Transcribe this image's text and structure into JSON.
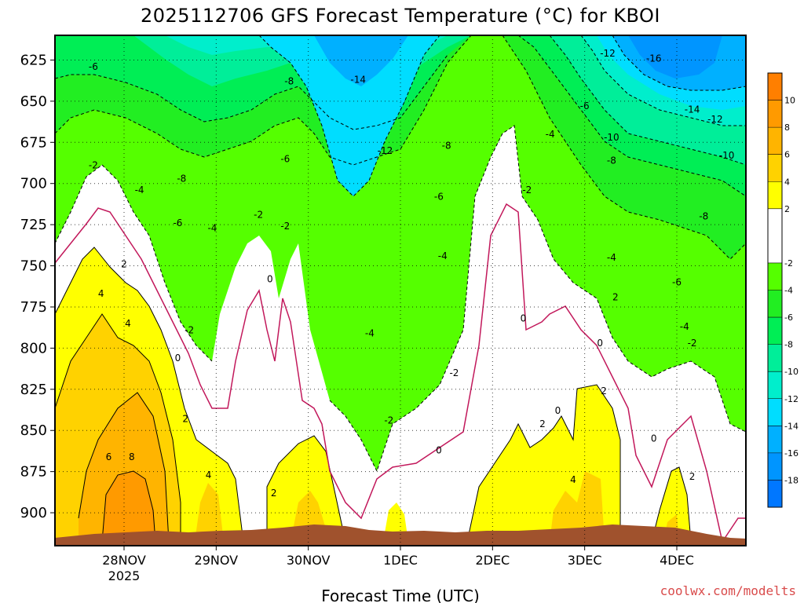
{
  "chart_data": {
    "type": "heatmap",
    "title": "2025112706 GFS Forecast Temperature (°C) for KBOI",
    "xlabel": "Forecast Time (UTC)",
    "ylabel": "",
    "y_axis": {
      "unit": "hPa",
      "ticks": [
        625,
        650,
        675,
        700,
        725,
        750,
        775,
        800,
        825,
        850,
        875,
        900
      ],
      "range": [
        610,
        920
      ],
      "grid": "dotted"
    },
    "x_axis": {
      "ticks": [
        {
          "label": "28NOV",
          "sublabel": "2025",
          "hour": 24
        },
        {
          "label": "29NOV",
          "sublabel": "",
          "hour": 48
        },
        {
          "label": "30NOV",
          "sublabel": "",
          "hour": 72
        },
        {
          "label": "1DEC",
          "sublabel": "",
          "hour": 96
        },
        {
          "label": "2DEC",
          "sublabel": "",
          "hour": 120
        },
        {
          "label": "3DEC",
          "sublabel": "",
          "hour": 144
        },
        {
          "label": "4DEC",
          "sublabel": "",
          "hour": 168
        }
      ],
      "range_hours": [
        6,
        186
      ],
      "grid": "dotted"
    },
    "colorbar": {
      "ticks": [
        10,
        8,
        6,
        4,
        2,
        -2,
        -4,
        -6,
        -8,
        -10,
        -12,
        -14,
        -16,
        -18
      ],
      "bins": [
        {
          "low": 10,
          "high": 12,
          "color": "#ff7f00"
        },
        {
          "low": 8,
          "high": 10,
          "color": "#ff9a00"
        },
        {
          "low": 6,
          "high": 8,
          "color": "#ffb400"
        },
        {
          "low": 4,
          "high": 6,
          "color": "#ffd200"
        },
        {
          "low": 2,
          "high": 4,
          "color": "#ffff00"
        },
        {
          "low": -2,
          "high": 2,
          "color": "#ffffff"
        },
        {
          "low": -4,
          "high": -2,
          "color": "#55ff00"
        },
        {
          "low": -6,
          "high": -4,
          "color": "#22ee22"
        },
        {
          "low": -8,
          "high": -6,
          "color": "#00ee55"
        },
        {
          "low": -10,
          "high": -8,
          "color": "#00ee99"
        },
        {
          "low": -12,
          "high": -10,
          "color": "#00eecc"
        },
        {
          "low": -14,
          "high": -12,
          "color": "#00ddff"
        },
        {
          "low": -16,
          "high": -14,
          "color": "#00b0ff"
        },
        {
          "low": -18,
          "high": -16,
          "color": "#0095ff"
        },
        {
          "low": -20,
          "high": -18,
          "color": "#0077ff"
        }
      ]
    },
    "contour_labels": [
      {
        "text": "-6",
        "hour": 16,
        "p": 629
      },
      {
        "text": "-2",
        "hour": 16,
        "p": 689
      },
      {
        "text": "-4",
        "hour": 28,
        "p": 704
      },
      {
        "text": "2",
        "hour": 24,
        "p": 749
      },
      {
        "text": "4",
        "hour": 18,
        "p": 767
      },
      {
        "text": "4",
        "hour": 25,
        "p": 785
      },
      {
        "text": "0",
        "hour": 38,
        "p": 806
      },
      {
        "text": "2",
        "hour": 40,
        "p": 843
      },
      {
        "text": "6",
        "hour": 20,
        "p": 866
      },
      {
        "text": "8",
        "hour": 26,
        "p": 866
      },
      {
        "text": "-8",
        "hour": 39,
        "p": 697
      },
      {
        "text": "-6",
        "hour": 38,
        "p": 724
      },
      {
        "text": "-4",
        "hour": 47,
        "p": 727
      },
      {
        "text": "-2",
        "hour": 41,
        "p": 789
      },
      {
        "text": "4",
        "hour": 46,
        "p": 877
      },
      {
        "text": "-8",
        "hour": 67,
        "p": 638
      },
      {
        "text": "-6",
        "hour": 66,
        "p": 685
      },
      {
        "text": "-2",
        "hour": 59,
        "p": 719
      },
      {
        "text": "-2",
        "hour": 66,
        "p": 726
      },
      {
        "text": "0",
        "hour": 62,
        "p": 758
      },
      {
        "text": "2",
        "hour": 63,
        "p": 888
      },
      {
        "text": "-14",
        "hour": 85,
        "p": 637
      },
      {
        "text": "-12",
        "hour": 92,
        "p": 680
      },
      {
        "text": "-8",
        "hour": 108,
        "p": 677
      },
      {
        "text": "-6",
        "hour": 106,
        "p": 708
      },
      {
        "text": "-4",
        "hour": 107,
        "p": 744
      },
      {
        "text": "-4",
        "hour": 88,
        "p": 791
      },
      {
        "text": "-2",
        "hour": 93,
        "p": 844
      },
      {
        "text": "-2",
        "hour": 110,
        "p": 815
      },
      {
        "text": "0",
        "hour": 106,
        "p": 862
      },
      {
        "text": "-4",
        "hour": 135,
        "p": 670
      },
      {
        "text": "-2",
        "hour": 129,
        "p": 704
      },
      {
        "text": "0",
        "hour": 128,
        "p": 782
      },
      {
        "text": "0",
        "hour": 137,
        "p": 838
      },
      {
        "text": "2",
        "hour": 133,
        "p": 846
      },
      {
        "text": "4",
        "hour": 141,
        "p": 880
      },
      {
        "text": "-12",
        "hour": 150,
        "p": 621
      },
      {
        "text": "-6",
        "hour": 144,
        "p": 653
      },
      {
        "text": "-10",
        "hour": 151,
        "p": 672
      },
      {
        "text": "-8",
        "hour": 151,
        "p": 686
      },
      {
        "text": "-4",
        "hour": 151,
        "p": 745
      },
      {
        "text": "2",
        "hour": 152,
        "p": 769
      },
      {
        "text": "0",
        "hour": 148,
        "p": 797
      },
      {
        "text": "2",
        "hour": 149,
        "p": 826
      },
      {
        "text": "-16",
        "hour": 162,
        "p": 624
      },
      {
        "text": "-14",
        "hour": 172,
        "p": 655
      },
      {
        "text": "-12",
        "hour": 178,
        "p": 661
      },
      {
        "text": "-10",
        "hour": 181,
        "p": 683
      },
      {
        "text": "-8",
        "hour": 175,
        "p": 720
      },
      {
        "text": "-6",
        "hour": 168,
        "p": 760
      },
      {
        "text": "-4",
        "hour": 170,
        "p": 787
      },
      {
        "text": "-2",
        "hour": 172,
        "p": 797
      },
      {
        "text": "0",
        "hour": 162,
        "p": 855
      },
      {
        "text": "2",
        "hour": 172,
        "p": 878
      }
    ]
  },
  "credit": "coolwx.com/modelts",
  "colors": {
    "terrain": "#a0522d",
    "zero_line": "#c2185b",
    "plot_border": "#000000"
  }
}
